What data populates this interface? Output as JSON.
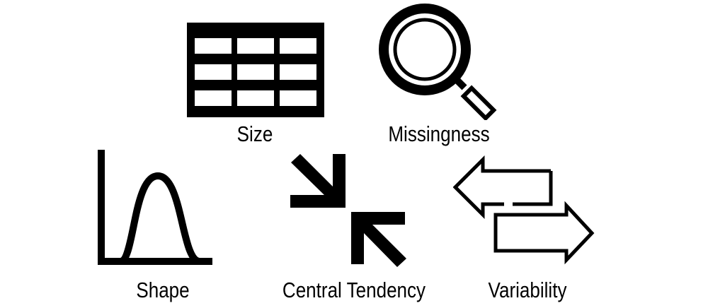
{
  "items": [
    {
      "label": "Size",
      "icon": "table-icon"
    },
    {
      "label": "Missingness",
      "icon": "magnifier-icon"
    },
    {
      "label": "Shape",
      "icon": "distribution-curve-icon"
    },
    {
      "label": "Central Tendency",
      "icon": "converging-arrows-icon"
    },
    {
      "label": "Variability",
      "icon": "exchange-arrows-icon"
    }
  ],
  "colors": {
    "ink": "#000000",
    "background": "#ffffff"
  }
}
